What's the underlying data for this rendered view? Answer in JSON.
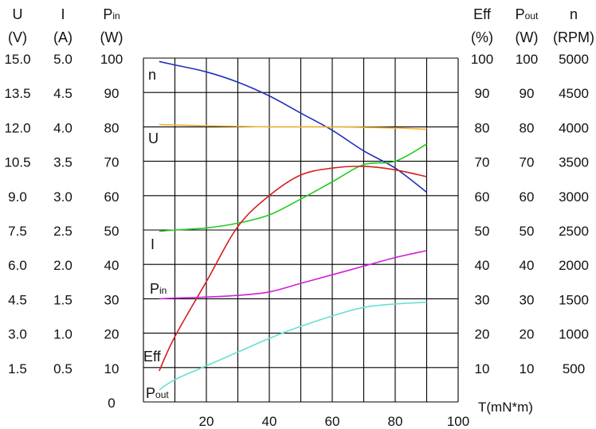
{
  "chart_data": {
    "type": "line",
    "title": "",
    "xlabel": "T(mN*m)",
    "x_ticks": [
      "20",
      "40",
      "60",
      "80",
      "100"
    ],
    "xlim": [
      0,
      100
    ],
    "grid": true,
    "left_axes": [
      {
        "id": "U",
        "header": "U",
        "unit": "(V)",
        "ticks": [
          "15.0",
          "13.5",
          "12.0",
          "10.5",
          "9.0",
          "7.5",
          "6.0",
          "4.5",
          "3.0",
          "1.5"
        ]
      },
      {
        "id": "I",
        "header": "I",
        "unit": "(A)",
        "ticks": [
          "5.0",
          "4.5",
          "4.0",
          "3.5",
          "3.0",
          "2.5",
          "2.0",
          "1.5",
          "1.0",
          "0.5"
        ]
      },
      {
        "id": "Pin",
        "header": "P",
        "header_sub": "in",
        "unit": "(W)",
        "ticks": [
          "100",
          "90",
          "80",
          "70",
          "60",
          "50",
          "40",
          "30",
          "20",
          "10"
        ],
        "zero_label": "0"
      }
    ],
    "right_axes": [
      {
        "id": "Eff",
        "header": "Eff",
        "unit": "(%)",
        "ticks": [
          "100",
          "90",
          "80",
          "70",
          "60",
          "50",
          "40",
          "30",
          "20",
          "10"
        ]
      },
      {
        "id": "Pout",
        "header": "P",
        "header_sub": "out",
        "unit": "(W)",
        "ticks": [
          "100",
          "90",
          "80",
          "70",
          "60",
          "50",
          "40",
          "30",
          "20",
          "10"
        ]
      },
      {
        "id": "n",
        "header": "n",
        "unit": "(RPM)",
        "ticks": [
          "5000",
          "4500",
          "4000",
          "3500",
          "3000",
          "2500",
          "2000",
          "1500",
          "1000",
          "500"
        ]
      }
    ],
    "series": [
      {
        "name": "n",
        "label_sub": "",
        "color": "#1f2fbf",
        "scale": "0-5000 RPM",
        "x": [
          5,
          10,
          20,
          30,
          40,
          50,
          60,
          70,
          80,
          90
        ],
        "y": [
          4950,
          4900,
          4800,
          4650,
          4450,
          4200,
          3950,
          3650,
          3400,
          3050
        ]
      },
      {
        "name": "U",
        "label_sub": "",
        "color": "#f0b030",
        "scale": "0-15 V",
        "x": [
          5,
          20,
          40,
          60,
          80,
          90
        ],
        "y": [
          12.1,
          12.05,
          12.0,
          12.0,
          11.95,
          11.9
        ]
      },
      {
        "name": "I",
        "label_sub": "",
        "color": "#22cc22",
        "scale": "0-5 A",
        "x": [
          5,
          10,
          20,
          30,
          40,
          50,
          60,
          70,
          80,
          90
        ],
        "y": [
          2.48,
          2.5,
          2.53,
          2.6,
          2.72,
          2.95,
          3.2,
          3.45,
          3.5,
          3.75
        ]
      },
      {
        "name": "Eff",
        "label_sub": "",
        "color": "#d42020",
        "scale": "0-100 %",
        "x": [
          5,
          10,
          20,
          30,
          40,
          50,
          60,
          70,
          80,
          90
        ],
        "y": [
          9,
          19,
          35,
          51,
          60,
          66,
          68,
          68.5,
          67.5,
          65.5
        ]
      },
      {
        "name": "P",
        "label_sub": "in",
        "color": "#d020d8",
        "scale": "0-100 W",
        "x": [
          5,
          10,
          20,
          30,
          40,
          50,
          60,
          70,
          80,
          90
        ],
        "y": [
          30,
          30.2,
          30.5,
          31,
          32,
          34.5,
          37,
          39.5,
          42,
          44
        ]
      },
      {
        "name": "P",
        "label_sub": "out",
        "color": "#66e0d0",
        "scale": "0-100 W",
        "x": [
          5,
          10,
          20,
          30,
          40,
          50,
          60,
          70,
          80,
          90
        ],
        "y": [
          3.5,
          6.5,
          10.5,
          14.5,
          18.5,
          22,
          25,
          27.5,
          28.5,
          29
        ]
      }
    ]
  }
}
